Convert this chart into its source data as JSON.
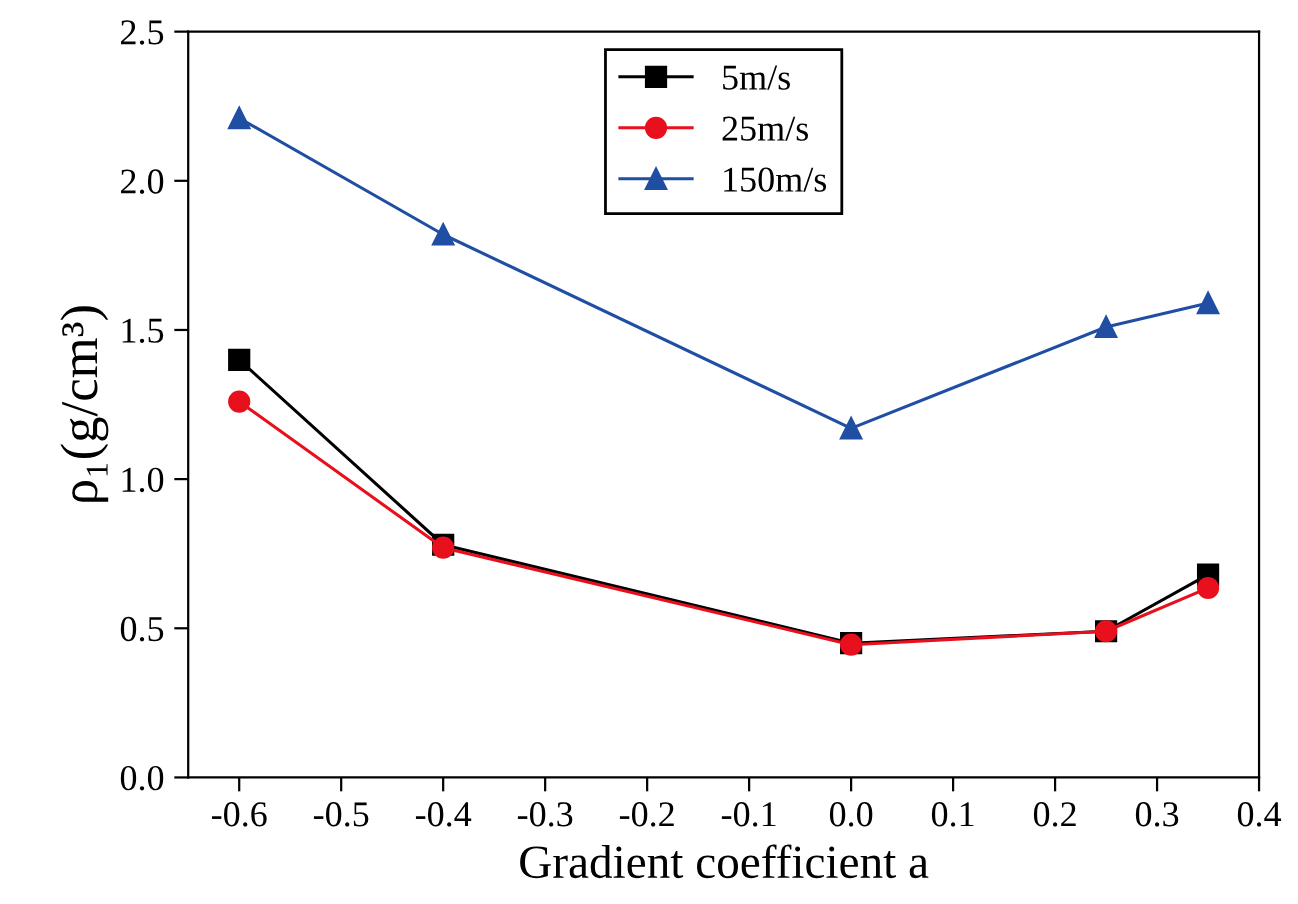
{
  "chart_data": {
    "type": "line",
    "xlabel": "Gradient coefficient a",
    "ylabel": "ρ₁(g/cm³)",
    "x": [
      -0.6,
      -0.4,
      0.0,
      0.25,
      0.35
    ],
    "series": [
      {
        "name": "5m/s",
        "color": "#000000",
        "marker": "square",
        "values": [
          1.4,
          0.78,
          0.45,
          0.49,
          0.68
        ]
      },
      {
        "name": "25m/s",
        "color": "#e8101c",
        "marker": "circle",
        "values": [
          1.26,
          0.77,
          0.445,
          0.49,
          0.635
        ]
      },
      {
        "name": "150m/s",
        "color": "#1f4ea3",
        "marker": "triangle",
        "values": [
          2.21,
          1.82,
          1.17,
          1.51,
          1.59
        ]
      }
    ],
    "xlim": [
      -0.65,
      0.4
    ],
    "xticks": [
      -0.6,
      -0.5,
      -0.4,
      -0.3,
      -0.2,
      -0.1,
      {
        "value": 0,
        "label": "0.0"
      },
      0.1,
      0.2,
      0.3,
      0.4
    ],
    "ylim": [
      0.0,
      2.5
    ],
    "yticks": [
      {
        "value": 0,
        "label": "0.0"
      },
      0.5,
      {
        "value": 1,
        "label": "1.0"
      },
      1.5,
      {
        "value": 2,
        "label": "2.0"
      },
      2.5
    ],
    "legend": "top center",
    "grid": false,
    "line_style": "solid"
  }
}
